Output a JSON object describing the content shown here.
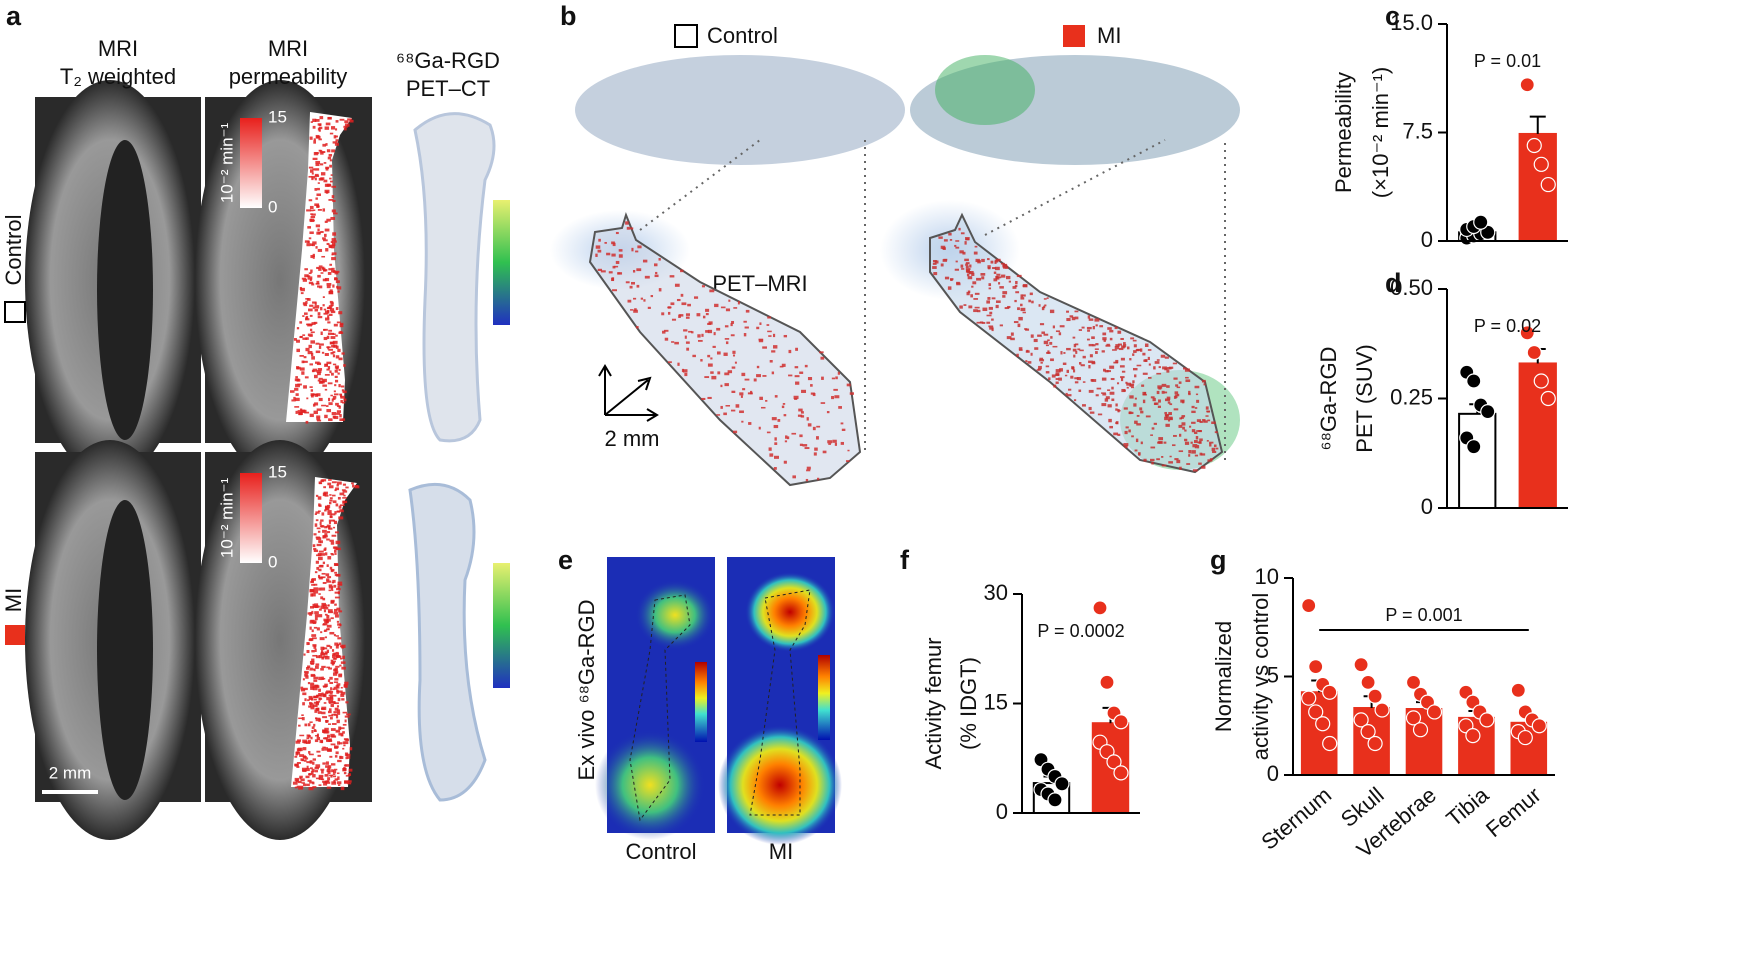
{
  "figure": {
    "panel_labels": [
      "a",
      "b",
      "c",
      "d",
      "e",
      "f",
      "g"
    ],
    "a": {
      "column_titles": [
        [
          "MRI",
          "T₂ weighted"
        ],
        [
          "MRI",
          "permeability"
        ],
        [
          "⁶⁸Ga-RGD",
          "PET–CT"
        ]
      ],
      "row_labels": [
        "Control",
        "MI"
      ],
      "colorbar_max": 15,
      "colorbar_min": 0,
      "colorbar_unit": "10⁻² min⁻¹",
      "scale_bar": "2 mm"
    },
    "b": {
      "legend": [
        "Control",
        "MI"
      ],
      "overlay_label": "PET–MRI",
      "scale_bar": "2 mm"
    },
    "e": {
      "ylabel": "Ex vivo ⁶⁸Ga-RGD",
      "labels": [
        "Control",
        "MI"
      ]
    }
  },
  "chart_data": [
    {
      "type": "bar",
      "categories": [
        null,
        null
      ],
      "values": [
        0.6,
        7.4
      ],
      "errors": [
        0.15,
        1.2
      ],
      "points": [
        [
          0.2,
          0.35,
          0.5,
          0.6,
          0.8,
          1.0,
          1.3
        ],
        [
          10.8,
          6.6,
          5.3,
          3.9
        ]
      ],
      "colors": [
        "#ffffff",
        "#e8301c"
      ],
      "point_colors": [
        "#000000",
        "#e8301c"
      ],
      "ylabel": [
        "Permeability",
        "(×10⁻² min⁻¹)"
      ],
      "annotation": "P = 0.01",
      "ylim": [
        0,
        15
      ],
      "yticks": [
        0,
        7.5,
        {
          "value": 15,
          "label": "15.0"
        }
      ]
    },
    {
      "type": "bar",
      "categories": [
        null,
        null
      ],
      "values": [
        0.215,
        0.33
      ],
      "errors": [
        0.022,
        0.033
      ],
      "points": [
        [
          0.31,
          0.29,
          0.235,
          0.22,
          0.16,
          0.14
        ],
        [
          0.4,
          0.355,
          0.29,
          0.25
        ]
      ],
      "colors": [
        "#ffffff",
        "#e8301c"
      ],
      "point_colors": [
        "#000000",
        "#e8301c"
      ],
      "ylabel": [
        "⁶⁸Ga-RGD",
        "PET (SUV)"
      ],
      "annotation": "P = 0.02",
      "ylim": [
        0,
        0.5
      ],
      "yticks": [
        0,
        0.25,
        {
          "value": 0.5,
          "label": "0.50"
        }
      ]
    },
    {
      "type": "bar",
      "categories": [
        null,
        null
      ],
      "values": [
        4.1,
        12.3
      ],
      "errors": [
        0.9,
        2.1
      ],
      "points": [
        [
          7.3,
          6.0,
          5.0,
          4.0,
          3.2,
          2.6,
          1.8
        ],
        [
          28.1,
          17.9,
          13.7,
          12.5,
          9.7,
          8.4,
          7.0,
          5.5
        ]
      ],
      "colors": [
        "#ffffff",
        "#e8301c"
      ],
      "point_colors": [
        "#000000",
        "#e8301c"
      ],
      "ylabel": [
        "Activity femur",
        "(% IDGT)"
      ],
      "annotation": "P = 0.0002",
      "ylim": [
        0,
        30
      ],
      "yticks": [
        0,
        15,
        30
      ]
    },
    {
      "type": "bar",
      "categories": [
        "Sternum",
        "Skull",
        "Vertebrae",
        "Tibia",
        "Femur"
      ],
      "values": [
        4.2,
        3.4,
        3.35,
        2.9,
        2.65
      ],
      "errors": [
        0.6,
        0.6,
        0.35,
        0.35,
        0.3
      ],
      "points": [
        [
          8.6,
          5.5,
          4.6,
          4.2,
          3.9,
          3.2,
          2.6,
          1.6
        ],
        [
          5.6,
          4.7,
          4.0,
          3.3,
          2.8,
          2.2,
          1.6
        ],
        [
          4.7,
          4.1,
          3.7,
          3.2,
          2.9,
          2.3
        ],
        [
          4.2,
          3.7,
          3.2,
          2.8,
          2.5,
          2.0
        ],
        [
          4.3,
          3.2,
          2.8,
          2.5,
          2.2,
          1.9
        ]
      ],
      "colors": [
        "#e8301c",
        "#e8301c",
        "#e8301c",
        "#e8301c",
        "#e8301c"
      ],
      "point_colors": [
        "#e8301c",
        "#e8301c",
        "#e8301c",
        "#e8301c",
        "#e8301c"
      ],
      "ylabel": [
        "Normalized",
        "activity vs control"
      ],
      "annotation": "P = 0.001",
      "ylim": [
        0,
        10
      ],
      "yticks": [
        0,
        5,
        10
      ]
    }
  ]
}
